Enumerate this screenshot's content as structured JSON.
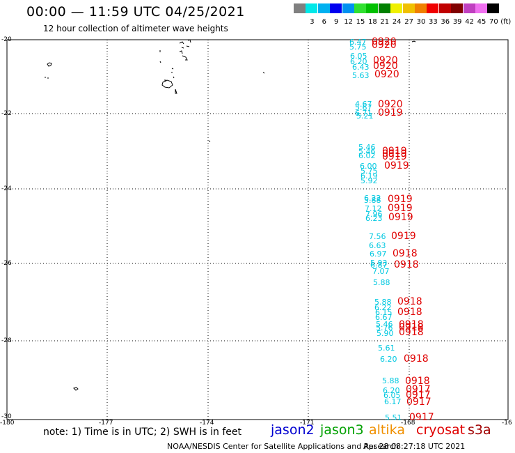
{
  "header": {
    "title": "00:00 — 11:59 UTC 04/25/2021",
    "subtitle": "12 hour collection of altimeter wave heights"
  },
  "colorbar": {
    "unit": "(ft)",
    "levels": [
      {
        "label": "",
        "color": "#808080"
      },
      {
        "label": "3",
        "color": "#00e8e8"
      },
      {
        "label": "6",
        "color": "#00b0f0"
      },
      {
        "label": "9",
        "color": "#0000f0"
      },
      {
        "label": "12",
        "color": "#0090f0"
      },
      {
        "label": "15",
        "color": "#30e030"
      },
      {
        "label": "18",
        "color": "#00c000"
      },
      {
        "label": "21",
        "color": "#008000"
      },
      {
        "label": "24",
        "color": "#f0f000"
      },
      {
        "label": "27",
        "color": "#f0c000"
      },
      {
        "label": "30",
        "color": "#f08000"
      },
      {
        "label": "33",
        "color": "#f00000"
      },
      {
        "label": "36",
        "color": "#c00000"
      },
      {
        "label": "39",
        "color": "#800000"
      },
      {
        "label": "42",
        "color": "#c040c0"
      },
      {
        "label": "45",
        "color": "#f070f0"
      },
      {
        "label": "70",
        "color": "#000000"
      }
    ]
  },
  "axes": {
    "lat_labels": [
      "-20",
      "-22",
      "-24",
      "-26",
      "-28",
      "-30"
    ],
    "lon_labels": [
      "-180",
      "-177",
      "-174",
      "-171",
      "-168",
      "-16"
    ]
  },
  "footer": {
    "note": "note: 1) Time is in UTC; 2) SWH is in feet",
    "satellites": [
      {
        "name": "jason2",
        "color": "#0000d0"
      },
      {
        "name": "jason3",
        "color": "#00a000"
      },
      {
        "name": "altika",
        "color": "#f09000"
      },
      {
        "name": "cryosat",
        "color": "#e00000"
      },
      {
        "name": "s3a",
        "color": "#a00000"
      }
    ],
    "credit": "NOAA/NESDIS Center for Satellite Applications and Research",
    "timestamp": "Apr 28 08:27:18 UTC 2021"
  },
  "observations": {
    "wave_heights": [
      "6.47",
      "5.75",
      "6.05",
      "6.20",
      "6.43",
      "5.63",
      "4.67",
      "5.67",
      "6.71",
      "5.21",
      "5.46",
      "5.46",
      "6.02",
      "6.00",
      "5.75",
      "6.19",
      "5.92",
      "6.22",
      "5.88",
      "7.12",
      "7.96",
      "6.23",
      "7.56",
      "6.63",
      "6.97",
      "5.93",
      "6.87",
      "7.07",
      "5.88",
      "5.88",
      "6.22",
      "6.15",
      "6.67",
      "5.46",
      "5.76",
      "5.90",
      "5.61",
      "6.20",
      "5.88",
      "6.20",
      "6.05",
      "6.17",
      "5.51"
    ],
    "times": [
      "0920",
      "0920",
      "0920",
      "0920",
      "0920",
      "0920",
      "0919",
      "0919",
      "0919",
      "0919",
      "0919",
      "0919",
      "0919",
      "0919",
      "0919",
      "0918",
      "0918",
      "0918",
      "0918",
      "0918",
      "0918",
      "0918",
      "0918",
      "0918",
      "0917",
      "0917",
      "0917",
      "0917"
    ]
  }
}
